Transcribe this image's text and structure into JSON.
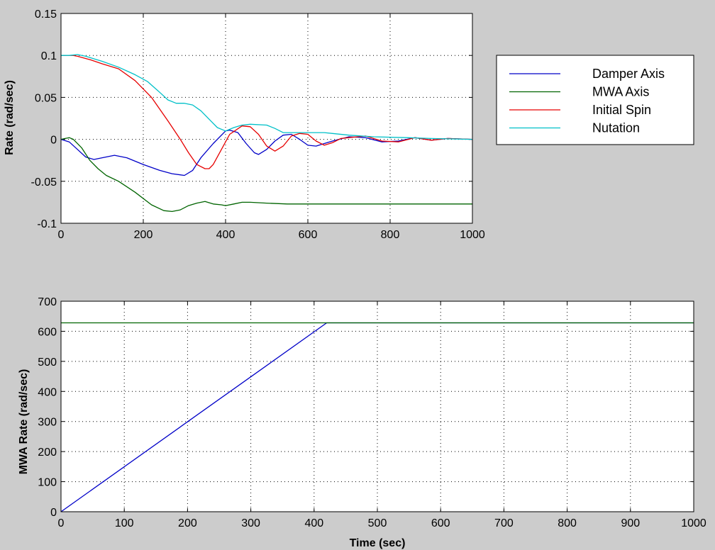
{
  "colors": {
    "figure_bg": "#cccccc",
    "axes_bg": "#ffffff",
    "blue": "#0000c8",
    "green": "#006400",
    "red": "#e60000",
    "cyan": "#00c0c8"
  },
  "chart_data": [
    {
      "type": "line",
      "title": "",
      "xlabel": "",
      "ylabel": "Rate (rad/sec)",
      "xlim": [
        0,
        1000
      ],
      "ylim": [
        -0.1,
        0.15
      ],
      "xticks": [
        "0",
        "200",
        "400",
        "600",
        "800",
        "1000"
      ],
      "yticks": [
        "-0.1",
        "-0.05",
        "0",
        "0.05",
        "0.1",
        "0.15"
      ],
      "grid": true,
      "legend_position": "right of plot",
      "series": [
        {
          "name": "Damper Axis",
          "color": "#0000c8",
          "x": [
            0,
            20,
            40,
            60,
            80,
            100,
            130,
            160,
            200,
            240,
            270,
            300,
            320,
            340,
            370,
            400,
            410,
            430,
            450,
            470,
            480,
            500,
            520,
            540,
            560,
            580,
            600,
            620,
            640,
            660,
            700,
            740,
            780,
            820,
            860,
            900,
            940,
            1000
          ],
          "y": [
            0,
            -0.003,
            -0.012,
            -0.021,
            -0.024,
            -0.022,
            -0.019,
            -0.022,
            -0.03,
            -0.037,
            -0.041,
            -0.043,
            -0.037,
            -0.022,
            -0.005,
            0.01,
            0.011,
            0.008,
            -0.005,
            -0.016,
            -0.018,
            -0.012,
            -0.002,
            0.005,
            0.006,
            0.0,
            -0.007,
            -0.008,
            -0.005,
            -0.002,
            0.003,
            0.002,
            -0.003,
            -0.002,
            0.002,
            -0.001,
            0.001,
            0.0
          ]
        },
        {
          "name": "MWA Axis",
          "color": "#006400",
          "x": [
            0,
            10,
            20,
            30,
            50,
            70,
            90,
            110,
            140,
            180,
            220,
            250,
            270,
            290,
            310,
            330,
            350,
            370,
            390,
            400,
            420,
            440,
            460,
            500,
            550,
            600,
            700,
            800,
            900,
            1000
          ],
          "y": [
            0,
            0.001,
            0.002,
            0.0,
            -0.01,
            -0.025,
            -0.035,
            -0.043,
            -0.05,
            -0.063,
            -0.078,
            -0.085,
            -0.086,
            -0.084,
            -0.079,
            -0.076,
            -0.074,
            -0.077,
            -0.078,
            -0.079,
            -0.077,
            -0.075,
            -0.075,
            -0.076,
            -0.077,
            -0.077,
            -0.077,
            -0.077,
            -0.077,
            -0.077
          ]
        },
        {
          "name": "Initial Spin",
          "color": "#e60000",
          "x": [
            0,
            20,
            30,
            40,
            70,
            100,
            140,
            180,
            220,
            260,
            290,
            310,
            330,
            350,
            360,
            370,
            390,
            410,
            440,
            460,
            480,
            500,
            520,
            540,
            560,
            580,
            600,
            620,
            640,
            660,
            680,
            700,
            740,
            780,
            820,
            860,
            900,
            940,
            1000
          ],
          "y": [
            0.1,
            0.1,
            0.1,
            0.099,
            0.095,
            0.09,
            0.084,
            0.07,
            0.05,
            0.022,
            0.0,
            -0.016,
            -0.03,
            -0.035,
            -0.035,
            -0.03,
            -0.012,
            0.006,
            0.016,
            0.015,
            0.006,
            -0.008,
            -0.014,
            -0.008,
            0.004,
            0.007,
            0.006,
            -0.002,
            -0.007,
            -0.004,
            0.001,
            0.002,
            0.004,
            -0.002,
            -0.003,
            0.002,
            -0.001,
            0.001,
            0.0
          ]
        },
        {
          "name": "Nutation",
          "color": "#00c0c8",
          "x": [
            0,
            20,
            40,
            60,
            100,
            140,
            180,
            210,
            240,
            260,
            280,
            300,
            320,
            340,
            360,
            380,
            400,
            420,
            440,
            460,
            500,
            520,
            540,
            580,
            640,
            660,
            700,
            760,
            840,
            900,
            1000
          ],
          "y": [
            0.1,
            0.1,
            0.101,
            0.099,
            0.093,
            0.086,
            0.077,
            0.069,
            0.056,
            0.047,
            0.043,
            0.043,
            0.041,
            0.034,
            0.024,
            0.014,
            0.01,
            0.014,
            0.017,
            0.018,
            0.017,
            0.013,
            0.008,
            0.008,
            0.008,
            0.007,
            0.005,
            0.003,
            0.002,
            0.001,
            0.0
          ]
        }
      ]
    },
    {
      "type": "line",
      "title": "",
      "xlabel": "Time (sec)",
      "ylabel": "MWA Rate (rad/sec)",
      "xlim": [
        0,
        1000
      ],
      "ylim": [
        0,
        700
      ],
      "xticks": [
        "0",
        "100",
        "200",
        "300",
        "400",
        "500",
        "600",
        "700",
        "800",
        "900",
        "1000"
      ],
      "yticks": [
        "0",
        "100",
        "200",
        "300",
        "400",
        "500",
        "600",
        "700"
      ],
      "grid": true,
      "series": [
        {
          "color": "#0000c8",
          "x": [
            0,
            420,
            1000
          ],
          "y": [
            0,
            628,
            628
          ]
        },
        {
          "color": "#006400",
          "x": [
            0,
            1000
          ],
          "y": [
            628,
            628
          ]
        }
      ]
    }
  ]
}
